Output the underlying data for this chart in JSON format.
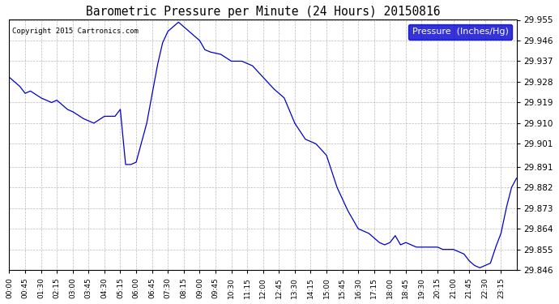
{
  "title": "Barometric Pressure per Minute (24 Hours) 20150816",
  "copyright": "Copyright 2015 Cartronics.com",
  "legend_label": "Pressure  (Inches/Hg)",
  "line_color": "#0000CC",
  "background_color": "#ffffff",
  "plot_bg_color": "#ffffff",
  "grid_color": "#aaaaaa",
  "ylim": [
    29.846,
    29.955
  ],
  "yticks": [
    29.846,
    29.855,
    29.864,
    29.873,
    29.882,
    29.891,
    29.901,
    29.91,
    29.919,
    29.928,
    29.937,
    29.946,
    29.955
  ],
  "xtick_labels": [
    "00:00",
    "00:45",
    "01:30",
    "02:15",
    "03:00",
    "03:45",
    "04:30",
    "05:15",
    "06:00",
    "06:45",
    "07:30",
    "08:15",
    "09:00",
    "09:45",
    "10:30",
    "11:15",
    "12:00",
    "12:45",
    "13:30",
    "14:15",
    "15:00",
    "15:45",
    "16:30",
    "17:15",
    "18:00",
    "18:45",
    "19:30",
    "20:15",
    "21:00",
    "21:45",
    "22:30",
    "23:15"
  ],
  "ctrl_x": [
    0,
    30,
    45,
    60,
    90,
    120,
    135,
    150,
    165,
    180,
    210,
    240,
    270,
    300,
    315,
    330,
    345,
    360,
    390,
    420,
    435,
    450,
    465,
    480,
    510,
    540,
    555,
    570,
    600,
    630,
    660,
    690,
    720,
    750,
    780,
    810,
    840,
    870,
    900,
    930,
    960,
    990,
    1020,
    1050,
    1065,
    1080,
    1095,
    1110,
    1125,
    1140,
    1155,
    1170,
    1185,
    1200,
    1215,
    1230,
    1260,
    1290,
    1305,
    1320,
    1335,
    1350,
    1365,
    1380,
    1395,
    1410,
    1425,
    1439
  ],
  "ctrl_y": [
    29.93,
    29.926,
    29.923,
    29.924,
    29.921,
    29.919,
    29.92,
    29.918,
    29.916,
    29.915,
    29.912,
    29.91,
    29.913,
    29.913,
    29.916,
    29.892,
    29.892,
    29.893,
    29.91,
    29.935,
    29.945,
    29.95,
    29.952,
    29.954,
    29.95,
    29.946,
    29.942,
    29.941,
    29.94,
    29.937,
    29.937,
    29.935,
    29.93,
    29.925,
    29.921,
    29.91,
    29.903,
    29.901,
    29.896,
    29.882,
    29.872,
    29.864,
    29.862,
    29.858,
    29.857,
    29.858,
    29.861,
    29.857,
    29.858,
    29.857,
    29.856,
    29.856,
    29.856,
    29.856,
    29.856,
    29.855,
    29.855,
    29.853,
    29.85,
    29.848,
    29.847,
    29.848,
    29.849,
    29.856,
    29.862,
    29.873,
    29.882,
    29.886
  ]
}
